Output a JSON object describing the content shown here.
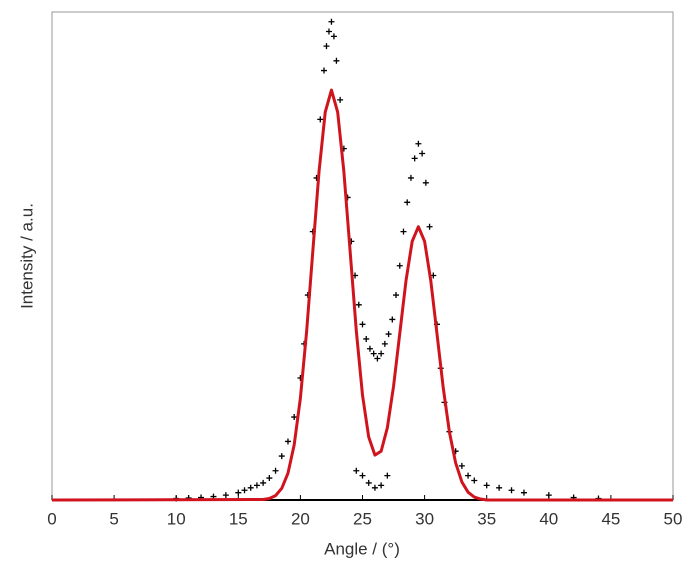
{
  "chart_data": {
    "type": "scatter",
    "xlabel": "Angle / (°)",
    "ylabel": "Intensity / a.u.",
    "xlim": [
      0,
      50
    ],
    "xticks": [
      0,
      5,
      10,
      15,
      20,
      25,
      30,
      35,
      40,
      45,
      50
    ],
    "ylim": [
      0,
      100
    ],
    "series": [
      {
        "type": "scatter",
        "color": "#000000",
        "x": [
          10,
          11,
          12,
          13,
          14,
          15,
          15.5,
          16,
          16.5,
          17,
          17.5,
          18,
          18.5,
          19,
          19.5,
          20,
          20.3,
          20.6,
          21,
          21.3,
          21.6,
          21.9,
          22.1,
          22.3,
          22.5,
          22.7,
          22.9,
          23.2,
          23.5,
          23.8,
          24.1,
          24.4,
          24.7,
          25,
          25.3,
          25.6,
          25.9,
          26.2,
          26.5,
          26.8,
          27.1,
          27.4,
          27.7,
          28,
          28.3,
          28.6,
          28.9,
          29.2,
          29.5,
          29.8,
          30.1,
          30.4,
          30.7,
          31,
          31.3,
          31.6,
          32,
          32.5,
          33,
          33.5,
          34,
          35,
          36,
          37,
          38,
          40,
          42,
          44,
          24.5,
          25,
          25.5,
          26,
          26.5,
          27
        ],
        "values": [
          0.3,
          0.4,
          0.5,
          0.7,
          1,
          1.5,
          2,
          2.5,
          3,
          3.5,
          4.5,
          6,
          9,
          12,
          17,
          25,
          32,
          42,
          55,
          66,
          78,
          88,
          93,
          96,
          98,
          95,
          90,
          82,
          72,
          62,
          53,
          46,
          40,
          36,
          33,
          31,
          30,
          29,
          30,
          32,
          34,
          37,
          42,
          48,
          55,
          61,
          66,
          70,
          73,
          71,
          65,
          56,
          46,
          36,
          27,
          20,
          14,
          10,
          7,
          5,
          4,
          3,
          2.5,
          2,
          1.5,
          1,
          0.5,
          0.3,
          6,
          5,
          3.5,
          2.5,
          3,
          5
        ]
      },
      {
        "type": "line",
        "color": "#d0141e",
        "x": [
          0,
          17,
          17.5,
          18,
          18.5,
          19,
          19.5,
          20,
          20.5,
          21,
          21.5,
          22,
          22.5,
          23,
          23.5,
          24,
          24.5,
          25,
          25.5,
          26,
          26.5,
          27,
          27.5,
          28,
          28.5,
          29,
          29.5,
          30,
          30.5,
          31,
          31.5,
          32,
          32.5,
          33,
          33.5,
          34,
          34.5,
          35,
          50
        ],
        "values": [
          0,
          0.1,
          0.3,
          0.9,
          2.4,
          5.5,
          11.3,
          20.9,
          34.5,
          51.0,
          67.3,
          79.5,
          84.0,
          79.5,
          67.3,
          51.1,
          34.7,
          21.5,
          12.9,
          9.2,
          10.0,
          14.8,
          23.3,
          34.1,
          44.9,
          53.0,
          56,
          53.0,
          44.9,
          34.0,
          23.0,
          13.9,
          7.6,
          3.7,
          1.6,
          0.6,
          0.2,
          0,
          0
        ]
      }
    ]
  }
}
